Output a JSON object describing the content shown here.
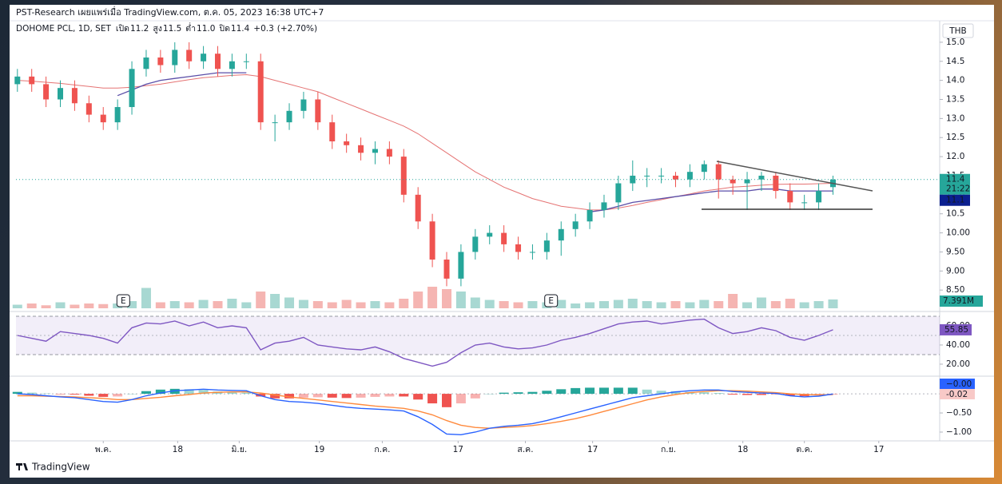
{
  "header": {
    "publisher": "PST-Research เผยแพร่เมื่อ TradingView.com, ต.ค. 05, 2023 16:38 UTC+7",
    "brand": "TradingView"
  },
  "chart_data": {
    "type": "candlestick",
    "title": "DOHOME PCL, 1D, SET",
    "legend": {
      "open_label": "เปิด",
      "open": "11.2",
      "high_label": "สูง",
      "high": "11.5",
      "low_label": "ต่ำ",
      "low": "11.0",
      "close_label": "ปิด",
      "close": "11.4",
      "change": "+0.3",
      "change_pct": "(+2.70%)"
    },
    "currency": "THB",
    "countdown": "21:22",
    "up_color": "#26a69a",
    "down_color": "#ef5350",
    "xlim": [
      -0.1,
      64.4
    ],
    "xticks": [
      {
        "value": 6.0,
        "label": "พ.ค."
      },
      {
        "value": 11.2,
        "label": "18"
      },
      {
        "value": 15.5,
        "label": "มิ.ย."
      },
      {
        "value": 21.1,
        "label": "19"
      },
      {
        "value": 25.5,
        "label": "ก.ค."
      },
      {
        "value": 30.8,
        "label": "17"
      },
      {
        "value": 35.5,
        "label": "ส.ค."
      },
      {
        "value": 40.2,
        "label": "17"
      },
      {
        "value": 45.5,
        "label": "ก.ย."
      },
      {
        "value": 50.7,
        "label": "18"
      },
      {
        "value": 55.0,
        "label": "ต.ค."
      },
      {
        "value": 60.2,
        "label": "17"
      }
    ],
    "ylim": [
      7.98,
      15.27
    ],
    "yticks": [
      {
        "value": 15.0,
        "label": "15.0"
      },
      14.5,
      {
        "value": 14.0,
        "label": "14.0"
      },
      13.5,
      {
        "value": 13.0,
        "label": "13.0"
      },
      12.5,
      {
        "value": 12.0,
        "label": "12.0"
      },
      11.5,
      {
        "value": 11.0,
        "label": "11.0"
      },
      10.5,
      {
        "value": 10.0,
        "label": "10.00"
      },
      {
        "value": 9.5,
        "label": "9.50"
      },
      {
        "value": 9.0,
        "label": "9.00"
      },
      {
        "value": 8.5,
        "label": "8.50"
      }
    ],
    "open": [
      13.9,
      14.1,
      13.9,
      13.5,
      13.8,
      13.4,
      13.1,
      12.9,
      13.3,
      14.3,
      14.6,
      14.4,
      14.8,
      14.5,
      14.7,
      14.3,
      14.5,
      14.5,
      12.9,
      12.9,
      13.2,
      13.5,
      12.9,
      12.4,
      12.3,
      12.1,
      12.2,
      12.0,
      11.0,
      10.3,
      9.3,
      8.8,
      9.5,
      9.9,
      10.0,
      9.7,
      9.5,
      9.5,
      9.8,
      10.1,
      10.3,
      10.6,
      10.8,
      11.3,
      11.5,
      11.5,
      11.5,
      11.4,
      11.6,
      11.8,
      11.4,
      11.3,
      11.4,
      11.5,
      11.1,
      10.8,
      10.8,
      11.2
    ],
    "high": [
      14.3,
      14.3,
      14.1,
      14.0,
      14.0,
      13.6,
      13.3,
      13.5,
      14.5,
      14.8,
      14.8,
      15.0,
      15.0,
      14.9,
      14.9,
      14.7,
      14.7,
      14.7,
      13.1,
      13.4,
      13.7,
      13.7,
      13.1,
      12.6,
      12.5,
      12.4,
      12.4,
      12.2,
      11.2,
      10.5,
      9.5,
      9.7,
      10.1,
      10.2,
      10.2,
      9.9,
      9.7,
      10.0,
      10.3,
      10.5,
      10.8,
      11.0,
      11.5,
      11.9,
      11.7,
      11.7,
      11.6,
      11.8,
      11.9,
      11.9,
      11.5,
      11.6,
      11.6,
      11.6,
      11.3,
      11.0,
      11.3,
      11.5
    ],
    "low": [
      13.7,
      13.7,
      13.3,
      13.3,
      13.2,
      12.9,
      12.7,
      12.7,
      13.1,
      14.1,
      14.2,
      14.2,
      14.3,
      14.3,
      14.1,
      14.1,
      14.3,
      12.7,
      12.4,
      12.7,
      13.0,
      12.7,
      12.2,
      12.1,
      11.9,
      11.8,
      11.8,
      10.8,
      10.1,
      9.1,
      8.6,
      8.6,
      9.3,
      9.7,
      9.5,
      9.3,
      9.3,
      9.3,
      9.4,
      9.9,
      10.1,
      10.4,
      10.6,
      11.1,
      11.2,
      11.3,
      11.2,
      11.2,
      11.4,
      10.9,
      11.0,
      10.6,
      11.1,
      10.9,
      10.6,
      10.6,
      10.6,
      11.0
    ],
    "close": [
      14.1,
      13.9,
      13.5,
      13.8,
      13.4,
      13.1,
      12.9,
      13.3,
      14.3,
      14.6,
      14.4,
      14.8,
      14.5,
      14.7,
      14.3,
      14.5,
      14.5,
      12.9,
      12.9,
      13.2,
      13.5,
      12.9,
      12.4,
      12.3,
      12.1,
      12.2,
      12.0,
      11.0,
      10.3,
      9.3,
      8.8,
      9.5,
      9.9,
      10.0,
      9.7,
      9.5,
      9.5,
      9.8,
      10.1,
      10.3,
      10.6,
      10.8,
      11.3,
      11.5,
      11.5,
      11.5,
      11.4,
      11.6,
      11.8,
      11.4,
      11.3,
      11.4,
      11.5,
      11.1,
      10.8,
      10.8,
      11.1,
      11.4
    ],
    "ma_long": {
      "color": "#e57373",
      "values": [
        14.0,
        13.98,
        13.95,
        13.92,
        13.88,
        13.84,
        13.8,
        13.8,
        13.82,
        13.86,
        13.9,
        13.96,
        14.02,
        14.07,
        14.1,
        14.13,
        14.15,
        14.1,
        14.0,
        13.9,
        13.8,
        13.7,
        13.55,
        13.4,
        13.25,
        13.1,
        12.95,
        12.8,
        12.6,
        12.35,
        12.1,
        11.85,
        11.6,
        11.4,
        11.2,
        11.05,
        10.9,
        10.8,
        10.7,
        10.65,
        10.6,
        10.6,
        10.65,
        10.72,
        10.8,
        10.87,
        10.95,
        11.02,
        11.1,
        11.15,
        11.2,
        11.22,
        11.25,
        11.27,
        11.28,
        11.28,
        11.29,
        11.3
      ]
    },
    "ma_short": {
      "color": "#5b4fa8",
      "values": [
        null,
        null,
        null,
        null,
        null,
        null,
        null,
        13.6,
        13.75,
        13.9,
        14.0,
        14.05,
        14.1,
        14.15,
        14.2,
        14.2,
        14.2,
        null,
        null,
        null,
        null,
        null,
        null,
        null,
        null,
        null,
        null,
        null,
        null,
        null,
        null,
        null,
        null,
        null,
        null,
        null,
        null,
        null,
        null,
        null,
        10.55,
        10.6,
        10.7,
        10.8,
        10.85,
        10.9,
        10.95,
        11.0,
        11.05,
        11.1,
        11.1,
        11.1,
        11.15,
        11.15,
        11.1,
        11.1,
        11.1,
        11.1
      ]
    },
    "volume": {
      "up_color": "#a8d8d2",
      "down_color": "#f5b5b2",
      "ylim": [
        0,
        20
      ],
      "last_label": "7.391M",
      "values": [
        3,
        4,
        2.5,
        5,
        3,
        4,
        3.5,
        4,
        6,
        17,
        5,
        6,
        5,
        7,
        6,
        8,
        5,
        14,
        12,
        9,
        7,
        6,
        5,
        7,
        5,
        6,
        5,
        8,
        14,
        18,
        16,
        14,
        9,
        7,
        6,
        5,
        6,
        5,
        7,
        4,
        5,
        6,
        7,
        8,
        6,
        5,
        6,
        5,
        7,
        6,
        12,
        5,
        9,
        6,
        8,
        5,
        6,
        7.391
      ]
    },
    "earnings": [
      {
        "label": "E",
        "x": 7.4
      },
      {
        "label": "E",
        "x": 37.3
      }
    ],
    "rsi": {
      "color": "#7e57c2",
      "ylim": [
        8.3,
        73.3
      ],
      "band": [
        30,
        70
      ],
      "yticks": [
        {
          "value": 60,
          "label": "60.00"
        },
        {
          "value": 40,
          "label": "40.00"
        },
        {
          "value": 20,
          "label": "20.00"
        }
      ],
      "values": [
        50,
        47,
        44,
        54,
        52,
        50,
        47,
        42,
        58,
        63,
        62,
        65,
        60,
        64,
        58,
        60,
        58,
        35,
        42,
        44,
        48,
        40,
        38,
        36,
        35,
        38,
        33,
        26,
        22,
        18,
        22,
        32,
        40,
        42,
        38,
        36,
        37,
        40,
        45,
        48,
        52,
        57,
        62,
        64,
        65,
        62,
        64,
        66,
        67,
        58,
        52,
        54,
        58,
        55,
        48,
        45,
        50,
        55.85
      ]
    },
    "macd": {
      "ylim": [
        -1.23,
        0.44
      ],
      "yticks": [
        {
          "value": -0.5,
          "label": "−0.50"
        },
        {
          "value": -1.0,
          "label": "−1.00"
        }
      ],
      "line": {
        "color": "#2962ff",
        "last_label": "−0.00",
        "values": [
          0.0,
          -0.02,
          -0.05,
          -0.08,
          -0.1,
          -0.15,
          -0.2,
          -0.22,
          -0.15,
          -0.05,
          0.02,
          0.08,
          0.1,
          0.12,
          0.1,
          0.09,
          0.08,
          -0.05,
          -0.15,
          -0.2,
          -0.22,
          -0.25,
          -0.3,
          -0.35,
          -0.38,
          -0.4,
          -0.42,
          -0.45,
          -0.6,
          -0.8,
          -1.05,
          -1.07,
          -1.0,
          -0.9,
          -0.85,
          -0.82,
          -0.78,
          -0.7,
          -0.6,
          -0.5,
          -0.4,
          -0.3,
          -0.2,
          -0.1,
          -0.05,
          0.0,
          0.05,
          0.08,
          0.1,
          0.1,
          0.06,
          0.04,
          0.02,
          0.01,
          -0.05,
          -0.08,
          -0.06,
          -0.004
        ]
      },
      "signal": {
        "color": "#ff8a3d",
        "values": [
          -0.05,
          -0.05,
          -0.06,
          -0.07,
          -0.08,
          -0.1,
          -0.12,
          -0.15,
          -0.15,
          -0.12,
          -0.09,
          -0.05,
          -0.02,
          0.02,
          0.04,
          0.05,
          0.05,
          0.02,
          -0.03,
          -0.08,
          -0.12,
          -0.16,
          -0.2,
          -0.24,
          -0.28,
          -0.32,
          -0.35,
          -0.38,
          -0.45,
          -0.55,
          -0.7,
          -0.82,
          -0.88,
          -0.9,
          -0.88,
          -0.86,
          -0.83,
          -0.78,
          -0.72,
          -0.65,
          -0.56,
          -0.46,
          -0.36,
          -0.26,
          -0.16,
          -0.08,
          -0.02,
          0.03,
          0.06,
          0.08,
          0.08,
          0.07,
          0.05,
          0.03,
          0.0,
          -0.02,
          -0.03,
          -0.02
        ]
      },
      "hist": {
        "up_color": "#26a69a",
        "down_color": "#ef5350",
        "last_color": "#f8c9c7",
        "values": [
          0.05,
          0.03,
          0.01,
          -0.01,
          -0.02,
          -0.05,
          -0.08,
          -0.07,
          0.0,
          0.07,
          0.11,
          0.13,
          0.12,
          0.1,
          0.06,
          0.04,
          0.03,
          -0.07,
          -0.12,
          -0.12,
          -0.1,
          -0.09,
          -0.1,
          -0.11,
          -0.1,
          -0.08,
          -0.07,
          -0.07,
          -0.15,
          -0.25,
          -0.35,
          -0.25,
          -0.12,
          0.0,
          0.03,
          0.04,
          0.05,
          0.08,
          0.12,
          0.15,
          0.16,
          0.16,
          0.16,
          0.16,
          0.11,
          0.08,
          0.07,
          0.05,
          0.04,
          0.02,
          -0.02,
          -0.03,
          -0.03,
          -0.02,
          -0.05,
          -0.06,
          -0.03,
          -0.02
        ]
      }
    }
  }
}
